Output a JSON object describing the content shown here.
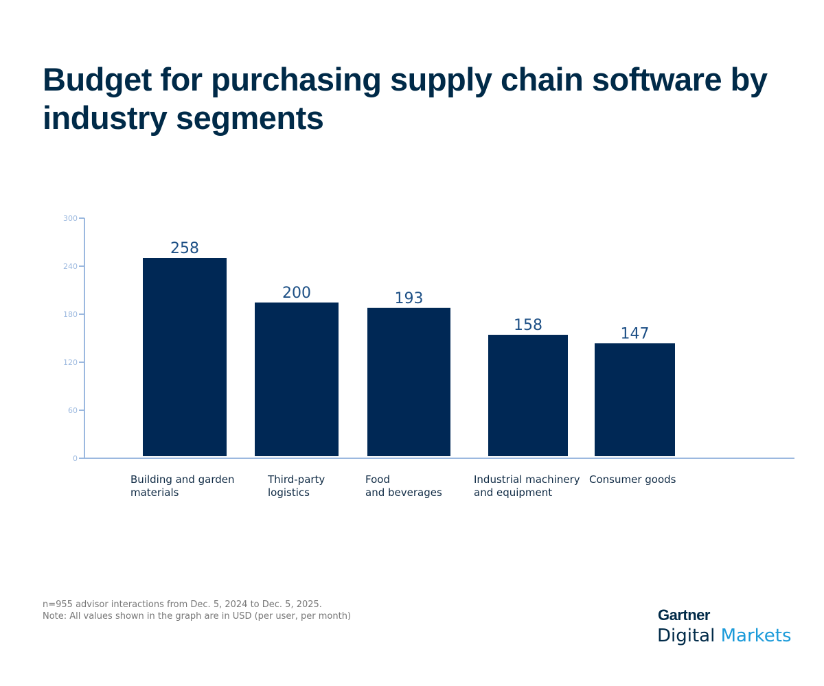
{
  "title": "Budget for purchasing supply chain software by industry segments",
  "chart_data": {
    "type": "bar",
    "title": "Budget for purchasing supply chain software by industry segments",
    "categories": [
      "Building and garden\nmaterials",
      "Third-party\nlogistics",
      "Food\nand beverages",
      "Industrial machinery\nand equipment",
      "Consumer goods"
    ],
    "values": [
      258,
      200,
      193,
      158,
      147
    ],
    "ylim": [
      0,
      300
    ],
    "yticks": [
      0,
      60,
      120,
      180,
      240,
      300
    ],
    "grid": false,
    "bar_color": "#002855",
    "axis_color": "#9bb8df",
    "label_color": "#1c4f85"
  },
  "footnote": {
    "line1": "n=955 advisor interactions from Dec. 5, 2024 to Dec. 5, 2025.",
    "line2": "Note: All values shown in the graph are in USD (per user, per month)"
  },
  "logo": {
    "brand": "Gartner",
    "sub1": "Digital",
    "sub2": "Markets"
  }
}
